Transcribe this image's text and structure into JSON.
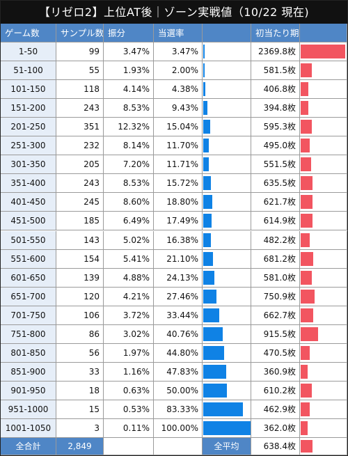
{
  "title": "【リゼロ2】上位AT後｜ゾーン実戦値（10/22 現在)",
  "headers": [
    "ゲーム数",
    "サンプル数",
    "振分",
    "当選率",
    "",
    "初当たり期待枚数",
    ""
  ],
  "colors": {
    "header_bg": "#4f86c6",
    "range_bg": "#e6eef8",
    "bar_blue": "#0f82e5",
    "bar_red": "#f25560",
    "title_bg": "#111111"
  },
  "chart_data": {
    "type": "table",
    "title": "【リゼロ2】上位AT後｜ゾーン実戦値（10/22 現在)",
    "columns": [
      "ゲーム数",
      "サンプル数",
      "振分",
      "当選率",
      "初当たり期待枚数"
    ],
    "rows": [
      {
        "range": "1-50",
        "samples": "99",
        "share": "3.47%",
        "rate": "3.47%",
        "rate_value": 3.47,
        "expected": "2369.8枚",
        "expected_value": 2369.8
      },
      {
        "range": "51-100",
        "samples": "55",
        "share": "1.93%",
        "rate": "2.00%",
        "rate_value": 2.0,
        "expected": "581.5枚",
        "expected_value": 581.5
      },
      {
        "range": "101-150",
        "samples": "118",
        "share": "4.14%",
        "rate": "4.38%",
        "rate_value": 4.38,
        "expected": "406.8枚",
        "expected_value": 406.8
      },
      {
        "range": "151-200",
        "samples": "243",
        "share": "8.53%",
        "rate": "9.43%",
        "rate_value": 9.43,
        "expected": "394.8枚",
        "expected_value": 394.8
      },
      {
        "range": "201-250",
        "samples": "351",
        "share": "12.32%",
        "rate": "15.04%",
        "rate_value": 15.04,
        "expected": "595.3枚",
        "expected_value": 595.3
      },
      {
        "range": "251-300",
        "samples": "232",
        "share": "8.14%",
        "rate": "11.70%",
        "rate_value": 11.7,
        "expected": "495.0枚",
        "expected_value": 495.0
      },
      {
        "range": "301-350",
        "samples": "205",
        "share": "7.20%",
        "rate": "11.71%",
        "rate_value": 11.71,
        "expected": "551.5枚",
        "expected_value": 551.5
      },
      {
        "range": "351-400",
        "samples": "243",
        "share": "8.53%",
        "rate": "15.72%",
        "rate_value": 15.72,
        "expected": "635.5枚",
        "expected_value": 635.5
      },
      {
        "range": "401-450",
        "samples": "245",
        "share": "8.60%",
        "rate": "18.80%",
        "rate_value": 18.8,
        "expected": "621.7枚",
        "expected_value": 621.7
      },
      {
        "range": "451-500",
        "samples": "185",
        "share": "6.49%",
        "rate": "17.49%",
        "rate_value": 17.49,
        "expected": "614.9枚",
        "expected_value": 614.9
      },
      {
        "range": "501-550",
        "samples": "143",
        "share": "5.02%",
        "rate": "16.38%",
        "rate_value": 16.38,
        "expected": "482.2枚",
        "expected_value": 482.2
      },
      {
        "range": "551-600",
        "samples": "154",
        "share": "5.41%",
        "rate": "21.10%",
        "rate_value": 21.1,
        "expected": "681.2枚",
        "expected_value": 681.2
      },
      {
        "range": "601-650",
        "samples": "139",
        "share": "4.88%",
        "rate": "24.13%",
        "rate_value": 24.13,
        "expected": "581.0枚",
        "expected_value": 581.0
      },
      {
        "range": "651-700",
        "samples": "120",
        "share": "4.21%",
        "rate": "27.46%",
        "rate_value": 27.46,
        "expected": "750.9枚",
        "expected_value": 750.9
      },
      {
        "range": "701-750",
        "samples": "106",
        "share": "3.72%",
        "rate": "33.44%",
        "rate_value": 33.44,
        "expected": "662.7枚",
        "expected_value": 662.7
      },
      {
        "range": "751-800",
        "samples": "86",
        "share": "3.02%",
        "rate": "40.76%",
        "rate_value": 40.76,
        "expected": "915.5枚",
        "expected_value": 915.5
      },
      {
        "range": "801-850",
        "samples": "56",
        "share": "1.97%",
        "rate": "44.80%",
        "rate_value": 44.8,
        "expected": "470.5枚",
        "expected_value": 470.5
      },
      {
        "range": "851-900",
        "samples": "33",
        "share": "1.16%",
        "rate": "47.83%",
        "rate_value": 47.83,
        "expected": "360.9枚",
        "expected_value": 360.9
      },
      {
        "range": "901-950",
        "samples": "18",
        "share": "0.63%",
        "rate": "50.00%",
        "rate_value": 50.0,
        "expected": "610.2枚",
        "expected_value": 610.2
      },
      {
        "range": "951-1000",
        "samples": "15",
        "share": "0.53%",
        "rate": "83.33%",
        "rate_value": 83.33,
        "expected": "462.9枚",
        "expected_value": 462.9
      },
      {
        "range": "1001-1050",
        "samples": "3",
        "share": "0.11%",
        "rate": "100.00%",
        "rate_value": 100.0,
        "expected": "362.0枚",
        "expected_value": 362.0
      }
    ],
    "footer": {
      "total_label": "全合計",
      "total_value": "2,849",
      "avg_label": "全平均",
      "avg_value": "638.4枚",
      "avg_numeric": 638.4
    }
  }
}
